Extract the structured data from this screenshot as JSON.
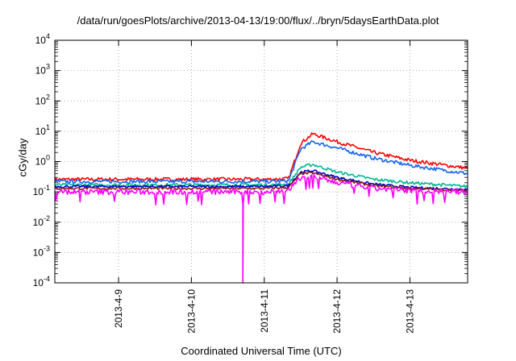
{
  "chart_data": {
    "type": "line",
    "title": "/data/run/goesPlots/archive/2013-04-13/19:00/flux/../bryn/5daysEarthData.plot",
    "xlabel": "Coordinated Universal Time (UTC)",
    "ylabel": "cGy/day",
    "yscale": "log",
    "ylim": [
      0.0001,
      10000
    ],
    "xlim": [
      "2013-04-08T03:00",
      "2013-04-13T19:00"
    ],
    "y_ticks": [
      {
        "base": "10",
        "exp": "-4"
      },
      {
        "base": "10",
        "exp": "-3"
      },
      {
        "base": "10",
        "exp": "-2"
      },
      {
        "base": "10",
        "exp": "-1"
      },
      {
        "base": "10",
        "exp": "0"
      },
      {
        "base": "10",
        "exp": "1"
      },
      {
        "base": "10",
        "exp": "2"
      },
      {
        "base": "10",
        "exp": "3"
      },
      {
        "base": "10",
        "exp": "4"
      }
    ],
    "y_tick_values": [
      0.0001,
      0.001,
      0.01,
      0.1,
      1,
      10,
      100,
      1000,
      10000
    ],
    "x_ticks": [
      "2013-4-9",
      "2013-4-10",
      "2013-4-11",
      "2013-4-12",
      "2013-4-13"
    ],
    "x_tick_values": [
      "2013-04-09T00:00",
      "2013-04-10T00:00",
      "2013-04-11T00:00",
      "2013-04-12T00:00",
      "2013-04-13T00:00"
    ],
    "grid": true,
    "legend": "none",
    "x": [
      "2013-04-08T03:00",
      "2013-04-09T00:00",
      "2013-04-10T00:00",
      "2013-04-11T00:00",
      "2013-04-11T08:00",
      "2013-04-11T12:00",
      "2013-04-11T16:00",
      "2013-04-12T00:00",
      "2013-04-12T12:00",
      "2013-04-13T00:00",
      "2013-04-13T19:00"
    ],
    "series": [
      {
        "color": "#ff0000",
        "values": [
          0.26,
          0.26,
          0.26,
          0.26,
          0.27,
          4.0,
          8.2,
          4.5,
          2.0,
          1.1,
          0.6
        ]
      },
      {
        "color": "#1464f0",
        "values": [
          0.22,
          0.22,
          0.22,
          0.22,
          0.23,
          2.6,
          4.5,
          2.8,
          1.3,
          0.75,
          0.4
        ]
      },
      {
        "color": "#00b890",
        "values": [
          0.17,
          0.17,
          0.17,
          0.17,
          0.18,
          0.65,
          0.8,
          0.45,
          0.26,
          0.2,
          0.15
        ]
      },
      {
        "color": "#0000c8",
        "values": [
          0.15,
          0.15,
          0.15,
          0.15,
          0.16,
          0.45,
          0.5,
          0.3,
          0.18,
          0.14,
          0.12
        ]
      },
      {
        "color": "#8b1a1a",
        "values": [
          0.13,
          0.13,
          0.13,
          0.13,
          0.14,
          0.4,
          0.42,
          0.26,
          0.16,
          0.13,
          0.11
        ]
      },
      {
        "color": "#ff00ff",
        "values": [
          0.1,
          0.1,
          0.1,
          0.1,
          0.11,
          0.3,
          0.32,
          0.2,
          0.13,
          0.11,
          0.1
        ]
      }
    ],
    "annotations": [
      {
        "series_color": "#ff00ff",
        "x": "2013-04-10T17:00",
        "y": 0.0001,
        "note_value": "dropout"
      }
    ]
  }
}
